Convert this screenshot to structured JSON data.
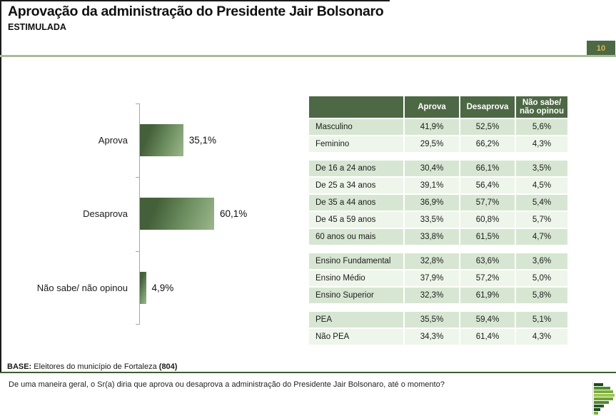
{
  "header": {
    "title": "Aprovação da administração do Presidente Jair Bolsonaro",
    "subtitle": "ESTIMULADA",
    "page_number": "10"
  },
  "colors": {
    "table_header_green": "#4d6844",
    "row_green": "#d7e6d2",
    "row_light_green": "#eef5ea",
    "sage_accent_line": "#a9bb9a",
    "dark_green_line": "#3d5c31",
    "bar_gradient_dark": "#44603a",
    "bar_gradient_light": "#9cb78d",
    "page_number_gold": "#e3b64f"
  },
  "chart_data": {
    "type": "bar",
    "orientation": "horizontal",
    "title": "",
    "categories": [
      "Aprova",
      "Desaprova",
      "Não sabe/ não opinou"
    ],
    "values": [
      35.1,
      60.1,
      4.9
    ],
    "value_labels": [
      "35,1%",
      "60,1%",
      "4,9%"
    ],
    "xlim": [
      0,
      100
    ],
    "grid": false,
    "legend": false
  },
  "table": {
    "header": [
      "",
      "Aprova",
      "Desaprova",
      "Não sabe/\nnão opinou"
    ],
    "groups": [
      {
        "name": "sexo",
        "rows": [
          [
            "Masculino",
            "41,9%",
            "52,5%",
            "5,6%"
          ],
          [
            "Feminino",
            "29,5%",
            "66,2%",
            "4,3%"
          ]
        ]
      },
      {
        "name": "faixa-etaria",
        "rows": [
          [
            "De 16 a 24 anos",
            "30,4%",
            "66,1%",
            "3,5%"
          ],
          [
            "De 25 a 34 anos",
            "39,1%",
            "56,4%",
            "4,5%"
          ],
          [
            "De 35 a 44 anos",
            "36,9%",
            "57,7%",
            "5,4%"
          ],
          [
            "De 45 a 59 anos",
            "33,5%",
            "60,8%",
            "5,7%"
          ],
          [
            "60 anos ou mais",
            "33,8%",
            "61,5%",
            "4,7%"
          ]
        ]
      },
      {
        "name": "escolaridade",
        "rows": [
          [
            "Ensino Fundamental",
            "32,8%",
            "63,6%",
            "3,6%"
          ],
          [
            "Ensino Médio",
            "37,9%",
            "57,2%",
            "5,0%"
          ],
          [
            "Ensino Superior",
            "32,3%",
            "61,9%",
            "5,8%"
          ]
        ]
      },
      {
        "name": "pea",
        "rows": [
          [
            "PEA",
            "35,5%",
            "59,4%",
            "5,1%"
          ],
          [
            "Não PEA",
            "34,3%",
            "61,4%",
            "4,3%"
          ]
        ]
      }
    ]
  },
  "footer": {
    "base_label": "BASE:",
    "base_text": " Eleitores do município de Fortaleza ",
    "base_count": "(804)",
    "question": "De uma maneira geral, o Sr(a) diria que aprova ou desaprova a administração do Presidente Jair Bolsonaro, até o momento?"
  },
  "logo": {
    "name": "striped-p-logo",
    "bars": [
      {
        "w": 13,
        "c": "#1c4a1c"
      },
      {
        "w": 23,
        "c": "#4e8b2f"
      },
      {
        "w": 27,
        "c": "#79ad3c"
      },
      {
        "w": 29,
        "c": "#9cc44b"
      },
      {
        "w": 27,
        "c": "#6da338"
      },
      {
        "w": 21,
        "c": "#4e8b2f"
      },
      {
        "w": 14,
        "c": "#2c5a23"
      },
      {
        "w": 9,
        "c": "#1c4a1c"
      },
      {
        "w": 6,
        "c": "#79ad3c"
      }
    ]
  }
}
